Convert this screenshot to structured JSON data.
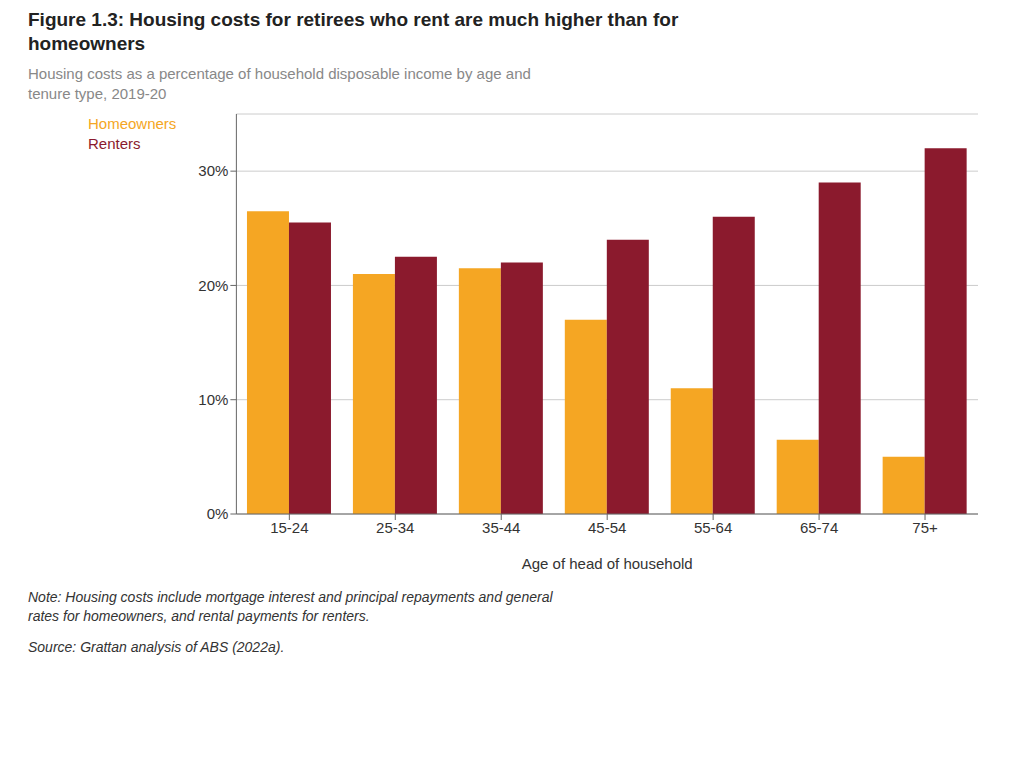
{
  "chart_data": {
    "type": "bar",
    "title": "Figure 1.3: Housing costs for retirees who rent are much higher than for\nhomeowners",
    "subtitle": "Housing costs as a percentage of household disposable income by age and\ntenure type, 2019-20",
    "categories": [
      "15-24",
      "25-34",
      "35-44",
      "45-54",
      "55-64",
      "65-74",
      "75+"
    ],
    "series": [
      {
        "name": "Homeowners",
        "color": "#F5A623",
        "values": [
          26.5,
          21.0,
          21.5,
          17.0,
          11.0,
          6.5,
          5.0
        ]
      },
      {
        "name": "Renters",
        "color": "#8B1A2D",
        "values": [
          25.5,
          22.5,
          22.0,
          24.0,
          26.0,
          29.0,
          32.0
        ]
      }
    ],
    "xlabel": "Age of head of household",
    "ylim": [
      0,
      35
    ],
    "yticks": [
      {
        "value": 0,
        "label": "0%"
      },
      {
        "value": 10,
        "label": "10%"
      },
      {
        "value": 20,
        "label": "20%"
      },
      {
        "value": 30,
        "label": "30%"
      }
    ],
    "grid": true,
    "legend": "upper left",
    "annotations": [
      "Note: Housing costs include mortgage interest and principal repayments and general\nrates for homeowners, and rental payments for renters.",
      "Source: Grattan analysis of ABS (2022a)."
    ]
  }
}
